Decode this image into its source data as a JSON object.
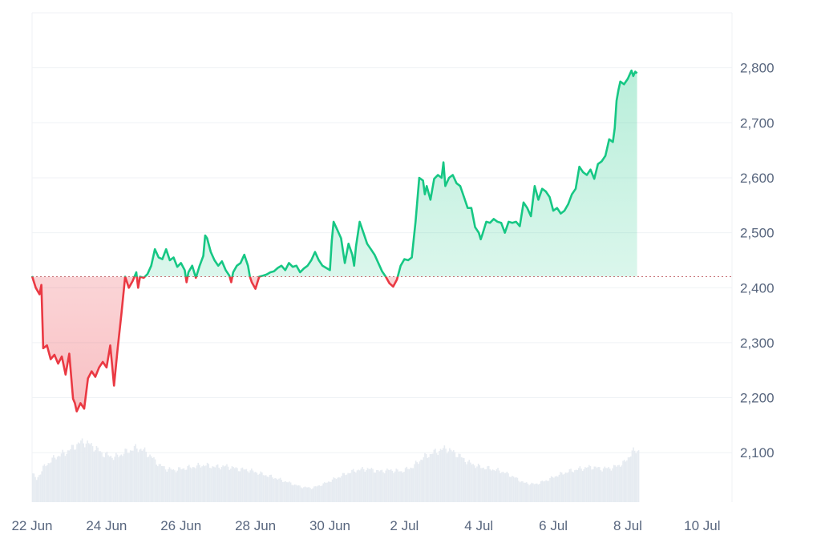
{
  "chart_data": {
    "type": "area",
    "baseline": 2420,
    "ylim": [
      2010,
      2900
    ],
    "yticks": [
      2100,
      2200,
      2300,
      2400,
      2500,
      2600,
      2700,
      2800
    ],
    "ytick_labels": [
      "2,100",
      "2,200",
      "2,300",
      "2,400",
      "2,500",
      "2,600",
      "2,700",
      "2,800"
    ],
    "xtick_labels": [
      "22 Jun",
      "24 Jun",
      "26 Jun",
      "28 Jun",
      "30 Jun",
      "2 Jul",
      "4 Jul",
      "6 Jul",
      "8 Jul",
      "10 Jul"
    ],
    "x_domain_days": [
      0,
      18.8
    ],
    "colors": {
      "up": "#16c784",
      "down": "#ea3943",
      "grid": "#eff2f5",
      "volume": "#e6ebf1",
      "tick": "#58667e"
    },
    "series": [
      {
        "values": [
          [
            0.0,
            2421
          ],
          [
            0.1,
            2400
          ],
          [
            0.2,
            2388
          ],
          [
            0.25,
            2405
          ],
          [
            0.3,
            2290
          ],
          [
            0.4,
            2295
          ],
          [
            0.5,
            2270
          ],
          [
            0.6,
            2278
          ],
          [
            0.7,
            2262
          ],
          [
            0.8,
            2275
          ],
          [
            0.9,
            2242
          ],
          [
            1.0,
            2280
          ],
          [
            1.1,
            2198
          ],
          [
            1.15,
            2190
          ],
          [
            1.2,
            2175
          ],
          [
            1.3,
            2190
          ],
          [
            1.4,
            2180
          ],
          [
            1.5,
            2235
          ],
          [
            1.6,
            2248
          ],
          [
            1.7,
            2238
          ],
          [
            1.8,
            2255
          ],
          [
            1.9,
            2265
          ],
          [
            2.0,
            2255
          ],
          [
            2.1,
            2295
          ],
          [
            2.15,
            2260
          ],
          [
            2.2,
            2222
          ],
          [
            2.3,
            2290
          ],
          [
            2.4,
            2352
          ],
          [
            2.5,
            2420
          ],
          [
            2.6,
            2400
          ],
          [
            2.7,
            2412
          ],
          [
            2.8,
            2428
          ],
          [
            2.85,
            2400
          ],
          [
            2.9,
            2420
          ],
          [
            3.0,
            2418
          ],
          [
            3.1,
            2425
          ],
          [
            3.2,
            2440
          ],
          [
            3.3,
            2470
          ],
          [
            3.4,
            2455
          ],
          [
            3.5,
            2452
          ],
          [
            3.6,
            2470
          ],
          [
            3.7,
            2450
          ],
          [
            3.8,
            2455
          ],
          [
            3.9,
            2438
          ],
          [
            4.0,
            2445
          ],
          [
            4.1,
            2432
          ],
          [
            4.15,
            2410
          ],
          [
            4.2,
            2428
          ],
          [
            4.3,
            2440
          ],
          [
            4.4,
            2418
          ],
          [
            4.5,
            2440
          ],
          [
            4.6,
            2458
          ],
          [
            4.65,
            2495
          ],
          [
            4.7,
            2490
          ],
          [
            4.8,
            2465
          ],
          [
            4.9,
            2450
          ],
          [
            5.0,
            2440
          ],
          [
            5.1,
            2448
          ],
          [
            5.2,
            2432
          ],
          [
            5.3,
            2422
          ],
          [
            5.35,
            2410
          ],
          [
            5.4,
            2428
          ],
          [
            5.5,
            2440
          ],
          [
            5.6,
            2445
          ],
          [
            5.7,
            2460
          ],
          [
            5.8,
            2440
          ],
          [
            5.85,
            2420
          ],
          [
            5.9,
            2410
          ],
          [
            6.0,
            2398
          ],
          [
            6.1,
            2420
          ],
          [
            6.2,
            2422
          ],
          [
            6.3,
            2424
          ],
          [
            6.4,
            2428
          ],
          [
            6.5,
            2430
          ],
          [
            6.6,
            2436
          ],
          [
            6.7,
            2440
          ],
          [
            6.8,
            2432
          ],
          [
            6.9,
            2445
          ],
          [
            7.0,
            2438
          ],
          [
            7.1,
            2440
          ],
          [
            7.2,
            2428
          ],
          [
            7.3,
            2435
          ],
          [
            7.4,
            2440
          ],
          [
            7.5,
            2450
          ],
          [
            7.6,
            2465
          ],
          [
            7.7,
            2450
          ],
          [
            7.8,
            2440
          ],
          [
            7.9,
            2436
          ],
          [
            8.0,
            2432
          ],
          [
            8.05,
            2485
          ],
          [
            8.1,
            2520
          ],
          [
            8.2,
            2505
          ],
          [
            8.3,
            2490
          ],
          [
            8.4,
            2445
          ],
          [
            8.5,
            2480
          ],
          [
            8.6,
            2460
          ],
          [
            8.65,
            2440
          ],
          [
            8.7,
            2475
          ],
          [
            8.8,
            2520
          ],
          [
            8.9,
            2500
          ],
          [
            9.0,
            2480
          ],
          [
            9.1,
            2470
          ],
          [
            9.2,
            2460
          ],
          [
            9.3,
            2445
          ],
          [
            9.4,
            2430
          ],
          [
            9.5,
            2420
          ],
          [
            9.6,
            2408
          ],
          [
            9.7,
            2402
          ],
          [
            9.8,
            2415
          ],
          [
            9.9,
            2440
          ],
          [
            10.0,
            2452
          ],
          [
            10.1,
            2450
          ],
          [
            10.2,
            2455
          ],
          [
            10.3,
            2520
          ],
          [
            10.4,
            2600
          ],
          [
            10.5,
            2595
          ],
          [
            10.55,
            2570
          ],
          [
            10.6,
            2585
          ],
          [
            10.7,
            2560
          ],
          [
            10.8,
            2598
          ],
          [
            10.9,
            2605
          ],
          [
            11.0,
            2600
          ],
          [
            11.05,
            2628
          ],
          [
            11.1,
            2585
          ],
          [
            11.2,
            2600
          ],
          [
            11.3,
            2605
          ],
          [
            11.4,
            2590
          ],
          [
            11.5,
            2585
          ],
          [
            11.6,
            2565
          ],
          [
            11.7,
            2545
          ],
          [
            11.8,
            2545
          ],
          [
            11.9,
            2510
          ],
          [
            12.0,
            2500
          ],
          [
            12.05,
            2488
          ],
          [
            12.1,
            2498
          ],
          [
            12.2,
            2520
          ],
          [
            12.3,
            2518
          ],
          [
            12.4,
            2525
          ],
          [
            12.5,
            2520
          ],
          [
            12.6,
            2518
          ],
          [
            12.7,
            2500
          ],
          [
            12.8,
            2520
          ],
          [
            12.9,
            2518
          ],
          [
            13.0,
            2520
          ],
          [
            13.1,
            2512
          ],
          [
            13.2,
            2555
          ],
          [
            13.3,
            2545
          ],
          [
            13.4,
            2530
          ],
          [
            13.5,
            2585
          ],
          [
            13.6,
            2560
          ],
          [
            13.7,
            2580
          ],
          [
            13.8,
            2575
          ],
          [
            13.9,
            2565
          ],
          [
            14.0,
            2540
          ],
          [
            14.1,
            2545
          ],
          [
            14.2,
            2535
          ],
          [
            14.3,
            2540
          ],
          [
            14.4,
            2552
          ],
          [
            14.5,
            2570
          ],
          [
            14.6,
            2580
          ],
          [
            14.7,
            2620
          ],
          [
            14.8,
            2610
          ],
          [
            14.9,
            2605
          ],
          [
            15.0,
            2615
          ],
          [
            15.1,
            2598
          ],
          [
            15.2,
            2625
          ],
          [
            15.3,
            2630
          ],
          [
            15.4,
            2640
          ],
          [
            15.5,
            2670
          ],
          [
            15.6,
            2665
          ],
          [
            15.65,
            2690
          ],
          [
            15.7,
            2740
          ],
          [
            15.75,
            2760
          ],
          [
            15.8,
            2775
          ],
          [
            15.9,
            2770
          ],
          [
            16.0,
            2780
          ],
          [
            16.1,
            2795
          ],
          [
            16.15,
            2785
          ],
          [
            16.2,
            2793
          ],
          [
            16.25,
            2790
          ]
        ]
      }
    ],
    "volume_profile": [
      [
        0,
        0.45
      ],
      [
        0.1,
        0.35
      ],
      [
        0.3,
        0.55
      ],
      [
        0.6,
        0.7
      ],
      [
        0.9,
        0.78
      ],
      [
        1.2,
        0.9
      ],
      [
        1.35,
        0.95
      ],
      [
        1.6,
        0.88
      ],
      [
        1.9,
        0.75
      ],
      [
        2.2,
        0.7
      ],
      [
        2.5,
        0.78
      ],
      [
        2.8,
        0.85
      ],
      [
        3.0,
        0.8
      ],
      [
        3.2,
        0.7
      ],
      [
        3.4,
        0.58
      ],
      [
        3.6,
        0.52
      ],
      [
        3.8,
        0.5
      ],
      [
        4.0,
        0.52
      ],
      [
        4.3,
        0.55
      ],
      [
        4.6,
        0.58
      ],
      [
        4.9,
        0.55
      ],
      [
        5.2,
        0.56
      ],
      [
        5.5,
        0.52
      ],
      [
        5.8,
        0.5
      ],
      [
        6.1,
        0.45
      ],
      [
        6.5,
        0.38
      ],
      [
        6.9,
        0.3
      ],
      [
        7.2,
        0.24
      ],
      [
        7.5,
        0.22
      ],
      [
        7.8,
        0.28
      ],
      [
        8.1,
        0.36
      ],
      [
        8.4,
        0.44
      ],
      [
        8.7,
        0.5
      ],
      [
        9.0,
        0.52
      ],
      [
        9.3,
        0.48
      ],
      [
        9.6,
        0.5
      ],
      [
        9.9,
        0.48
      ],
      [
        10.2,
        0.55
      ],
      [
        10.5,
        0.7
      ],
      [
        10.8,
        0.78
      ],
      [
        11.1,
        0.84
      ],
      [
        11.4,
        0.75
      ],
      [
        11.7,
        0.62
      ],
      [
        12.0,
        0.55
      ],
      [
        12.3,
        0.52
      ],
      [
        12.6,
        0.48
      ],
      [
        12.9,
        0.4
      ],
      [
        13.2,
        0.3
      ],
      [
        13.5,
        0.28
      ],
      [
        13.8,
        0.34
      ],
      [
        14.1,
        0.42
      ],
      [
        14.4,
        0.48
      ],
      [
        14.7,
        0.52
      ],
      [
        15.0,
        0.55
      ],
      [
        15.3,
        0.52
      ],
      [
        15.6,
        0.54
      ],
      [
        15.9,
        0.62
      ],
      [
        16.1,
        0.78
      ],
      [
        16.3,
        0.82
      ]
    ]
  }
}
